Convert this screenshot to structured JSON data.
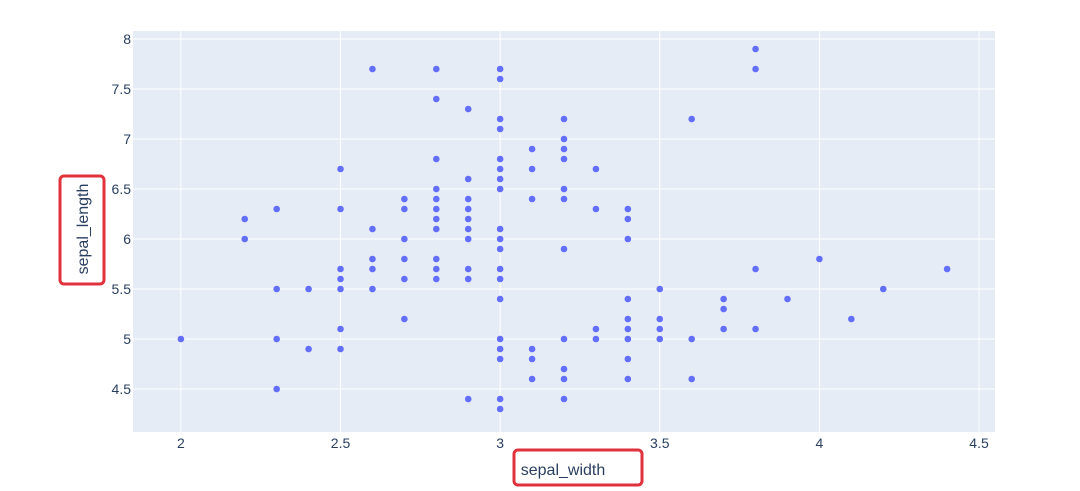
{
  "chart_data": {
    "type": "scatter",
    "xlabel": "sepal_width",
    "ylabel": "sepal_length",
    "xlim": [
      1.85,
      4.55
    ],
    "ylim": [
      4.07,
      8.08
    ],
    "xticks": [
      "2",
      "2.5",
      "3",
      "3.5",
      "4",
      "4.5"
    ],
    "yticks": [
      "4.5",
      "5",
      "5.5",
      "6",
      "6.5",
      "7",
      "7.5",
      "8"
    ],
    "grid": true,
    "marker_color": "#636efa",
    "plot_bg": "#e5ecf6",
    "highlight_color": "#e0323c",
    "points": [
      [
        2.0,
        5.0
      ],
      [
        2.2,
        6.2
      ],
      [
        2.2,
        6.0
      ],
      [
        2.3,
        6.3
      ],
      [
        2.3,
        5.5
      ],
      [
        2.3,
        5.0
      ],
      [
        2.3,
        4.5
      ],
      [
        2.4,
        5.5
      ],
      [
        2.4,
        4.9
      ],
      [
        2.5,
        6.7
      ],
      [
        2.5,
        6.3
      ],
      [
        2.5,
        5.7
      ],
      [
        2.5,
        5.6
      ],
      [
        2.5,
        5.5
      ],
      [
        2.5,
        5.1
      ],
      [
        2.5,
        4.9
      ],
      [
        2.6,
        7.7
      ],
      [
        2.6,
        6.1
      ],
      [
        2.6,
        5.8
      ],
      [
        2.6,
        5.7
      ],
      [
        2.6,
        5.5
      ],
      [
        2.7,
        6.4
      ],
      [
        2.7,
        6.3
      ],
      [
        2.7,
        6.0
      ],
      [
        2.7,
        5.8
      ],
      [
        2.7,
        5.6
      ],
      [
        2.7,
        5.2
      ],
      [
        2.8,
        7.7
      ],
      [
        2.8,
        7.4
      ],
      [
        2.8,
        6.8
      ],
      [
        2.8,
        6.5
      ],
      [
        2.8,
        6.4
      ],
      [
        2.8,
        6.3
      ],
      [
        2.8,
        6.2
      ],
      [
        2.8,
        6.1
      ],
      [
        2.8,
        5.8
      ],
      [
        2.8,
        5.7
      ],
      [
        2.8,
        5.6
      ],
      [
        2.9,
        7.3
      ],
      [
        2.9,
        6.6
      ],
      [
        2.9,
        6.4
      ],
      [
        2.9,
        6.3
      ],
      [
        2.9,
        6.2
      ],
      [
        2.9,
        6.1
      ],
      [
        2.9,
        6.0
      ],
      [
        2.9,
        5.7
      ],
      [
        2.9,
        5.6
      ],
      [
        2.9,
        4.4
      ],
      [
        3.0,
        7.7
      ],
      [
        3.0,
        7.6
      ],
      [
        3.0,
        7.2
      ],
      [
        3.0,
        7.1
      ],
      [
        3.0,
        6.8
      ],
      [
        3.0,
        6.7
      ],
      [
        3.0,
        6.6
      ],
      [
        3.0,
        6.5
      ],
      [
        3.0,
        6.1
      ],
      [
        3.0,
        6.0
      ],
      [
        3.0,
        5.9
      ],
      [
        3.0,
        5.7
      ],
      [
        3.0,
        5.6
      ],
      [
        3.0,
        5.4
      ],
      [
        3.0,
        5.0
      ],
      [
        3.0,
        4.9
      ],
      [
        3.0,
        4.8
      ],
      [
        3.0,
        4.4
      ],
      [
        3.0,
        4.3
      ],
      [
        3.1,
        6.9
      ],
      [
        3.1,
        6.7
      ],
      [
        3.1,
        6.4
      ],
      [
        3.1,
        4.9
      ],
      [
        3.1,
        4.8
      ],
      [
        3.1,
        4.6
      ],
      [
        3.2,
        7.2
      ],
      [
        3.2,
        7.0
      ],
      [
        3.2,
        6.9
      ],
      [
        3.2,
        6.8
      ],
      [
        3.2,
        6.5
      ],
      [
        3.2,
        6.4
      ],
      [
        3.2,
        5.9
      ],
      [
        3.2,
        5.0
      ],
      [
        3.2,
        4.7
      ],
      [
        3.2,
        4.6
      ],
      [
        3.2,
        4.4
      ],
      [
        3.3,
        6.7
      ],
      [
        3.3,
        6.3
      ],
      [
        3.3,
        5.1
      ],
      [
        3.3,
        5.0
      ],
      [
        3.4,
        6.3
      ],
      [
        3.4,
        6.2
      ],
      [
        3.4,
        6.0
      ],
      [
        3.4,
        5.4
      ],
      [
        3.4,
        5.2
      ],
      [
        3.4,
        5.1
      ],
      [
        3.4,
        5.0
      ],
      [
        3.4,
        4.8
      ],
      [
        3.4,
        4.6
      ],
      [
        3.5,
        5.5
      ],
      [
        3.5,
        5.2
      ],
      [
        3.5,
        5.1
      ],
      [
        3.5,
        5.0
      ],
      [
        3.6,
        7.2
      ],
      [
        3.6,
        5.0
      ],
      [
        3.6,
        4.6
      ],
      [
        3.7,
        5.4
      ],
      [
        3.7,
        5.3
      ],
      [
        3.7,
        5.1
      ],
      [
        3.8,
        7.9
      ],
      [
        3.8,
        7.7
      ],
      [
        3.8,
        5.7
      ],
      [
        3.8,
        5.1
      ],
      [
        3.9,
        5.4
      ],
      [
        4.0,
        5.8
      ],
      [
        4.1,
        5.2
      ],
      [
        4.2,
        5.5
      ],
      [
        4.4,
        5.7
      ]
    ]
  }
}
